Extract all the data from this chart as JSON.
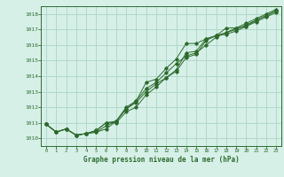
{
  "title": "Graphe pression niveau de la mer (hPa)",
  "background_color": "#d6f0e8",
  "grid_color": "#b0d8c8",
  "line_color": "#2d6a2d",
  "xlim": [
    -0.5,
    23.5
  ],
  "ylim": [
    1009.5,
    1018.5
  ],
  "xticks": [
    0,
    1,
    2,
    3,
    4,
    5,
    6,
    7,
    8,
    9,
    10,
    11,
    12,
    13,
    14,
    15,
    16,
    17,
    18,
    19,
    20,
    21,
    22,
    23
  ],
  "yticks": [
    1010,
    1011,
    1012,
    1013,
    1014,
    1015,
    1016,
    1017,
    1018
  ],
  "series": [
    [
      1010.9,
      1010.4,
      1010.6,
      1010.2,
      1010.3,
      1010.4,
      1010.6,
      1011.1,
      1011.9,
      1012.4,
      1013.6,
      1013.8,
      1014.5,
      1015.1,
      1016.1,
      1016.1,
      1016.4,
      1016.6,
      1017.1,
      1017.1,
      1017.2,
      1017.6,
      1017.9,
      1018.2
    ],
    [
      1010.9,
      1010.4,
      1010.6,
      1010.2,
      1010.3,
      1010.4,
      1010.8,
      1011.1,
      1012.0,
      1012.4,
      1013.2,
      1013.6,
      1014.2,
      1014.8,
      1015.3,
      1015.5,
      1016.0,
      1016.5,
      1016.8,
      1017.1,
      1017.4,
      1017.7,
      1018.0,
      1018.3
    ],
    [
      1010.9,
      1010.4,
      1010.6,
      1010.2,
      1010.3,
      1010.5,
      1011.0,
      1011.1,
      1011.9,
      1012.3,
      1013.0,
      1013.5,
      1013.9,
      1014.4,
      1015.5,
      1015.6,
      1016.4,
      1016.6,
      1016.8,
      1017.0,
      1017.3,
      1017.6,
      1017.9,
      1018.2
    ],
    [
      1010.9,
      1010.4,
      1010.6,
      1010.2,
      1010.3,
      1010.5,
      1011.0,
      1011.0,
      1011.7,
      1012.0,
      1012.8,
      1013.3,
      1013.9,
      1014.3,
      1015.2,
      1015.4,
      1016.3,
      1016.6,
      1016.7,
      1016.9,
      1017.2,
      1017.5,
      1017.8,
      1018.1
    ]
  ]
}
